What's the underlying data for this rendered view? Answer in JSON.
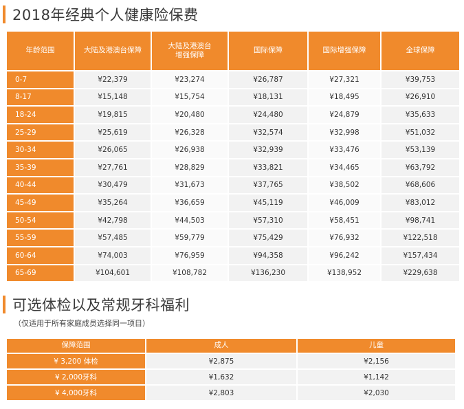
{
  "section1": {
    "title": "2018年经典个人健康险保费",
    "headers": [
      "年龄范围",
      "大陆及港澳台保障",
      "大陆及港澳台增强保障",
      "国际保障",
      "国际增强保障",
      "全球保障"
    ],
    "rows": [
      {
        "age": "0-7",
        "values": [
          "¥22,379",
          "¥23,274",
          "¥26,787",
          "¥27,321",
          "¥39,753"
        ]
      },
      {
        "age": "8-17",
        "values": [
          "¥15,148",
          "¥15,754",
          "¥18,131",
          "¥18,495",
          "¥26,910"
        ]
      },
      {
        "age": "18-24",
        "values": [
          "¥19,815",
          "¥20,480",
          "¥24,480",
          "¥24,879",
          "¥35,633"
        ]
      },
      {
        "age": "25-29",
        "values": [
          "¥25,619",
          "¥26,328",
          "¥32,574",
          "¥32,998",
          "¥51,032"
        ]
      },
      {
        "age": "30-34",
        "values": [
          "¥26,065",
          "¥26,938",
          "¥32,939",
          "¥33,476",
          "¥53,139"
        ]
      },
      {
        "age": "35-39",
        "values": [
          "¥27,761",
          "¥28,829",
          "¥33,821",
          "¥34,465",
          "¥63,792"
        ]
      },
      {
        "age": "40-44",
        "values": [
          "¥30,479",
          "¥31,673",
          "¥37,765",
          "¥38,502",
          "¥68,606"
        ]
      },
      {
        "age": "45-49",
        "values": [
          "¥35,264",
          "¥36,659",
          "¥45,119",
          "¥46,009",
          "¥83,012"
        ]
      },
      {
        "age": "50-54",
        "values": [
          "¥42,798",
          "¥44,503",
          "¥57,310",
          "¥58,451",
          "¥98,741"
        ]
      },
      {
        "age": "55-59",
        "values": [
          "¥57,485",
          "¥59,779",
          "¥75,429",
          "¥76,932",
          "¥122,518"
        ]
      },
      {
        "age": "60-64",
        "values": [
          "¥74,003",
          "¥76,959",
          "¥94,358",
          "¥96,242",
          "¥157,434"
        ]
      },
      {
        "age": "65-69",
        "values": [
          "¥104,601",
          "¥108,782",
          "¥136,230",
          "¥138,952",
          "¥229,638"
        ]
      }
    ]
  },
  "section2": {
    "title": "可选体检以及常规牙科福利",
    "note": "（仅适用于所有家庭成员选择同一项目）",
    "headers": [
      "保障范围",
      "成人",
      "儿童"
    ],
    "rows": [
      {
        "label": "¥ 3,200 体检",
        "values": [
          "¥2,875",
          "¥2,156"
        ]
      },
      {
        "label": "¥ 2,000牙科",
        "values": [
          "¥1,632",
          "¥1,142"
        ]
      },
      {
        "label": "¥ 4,000牙科",
        "values": [
          "¥2,803",
          "¥2,030"
        ]
      }
    ]
  },
  "colors": {
    "accent": "#f08a2c",
    "cell": "#f2f2f2"
  }
}
